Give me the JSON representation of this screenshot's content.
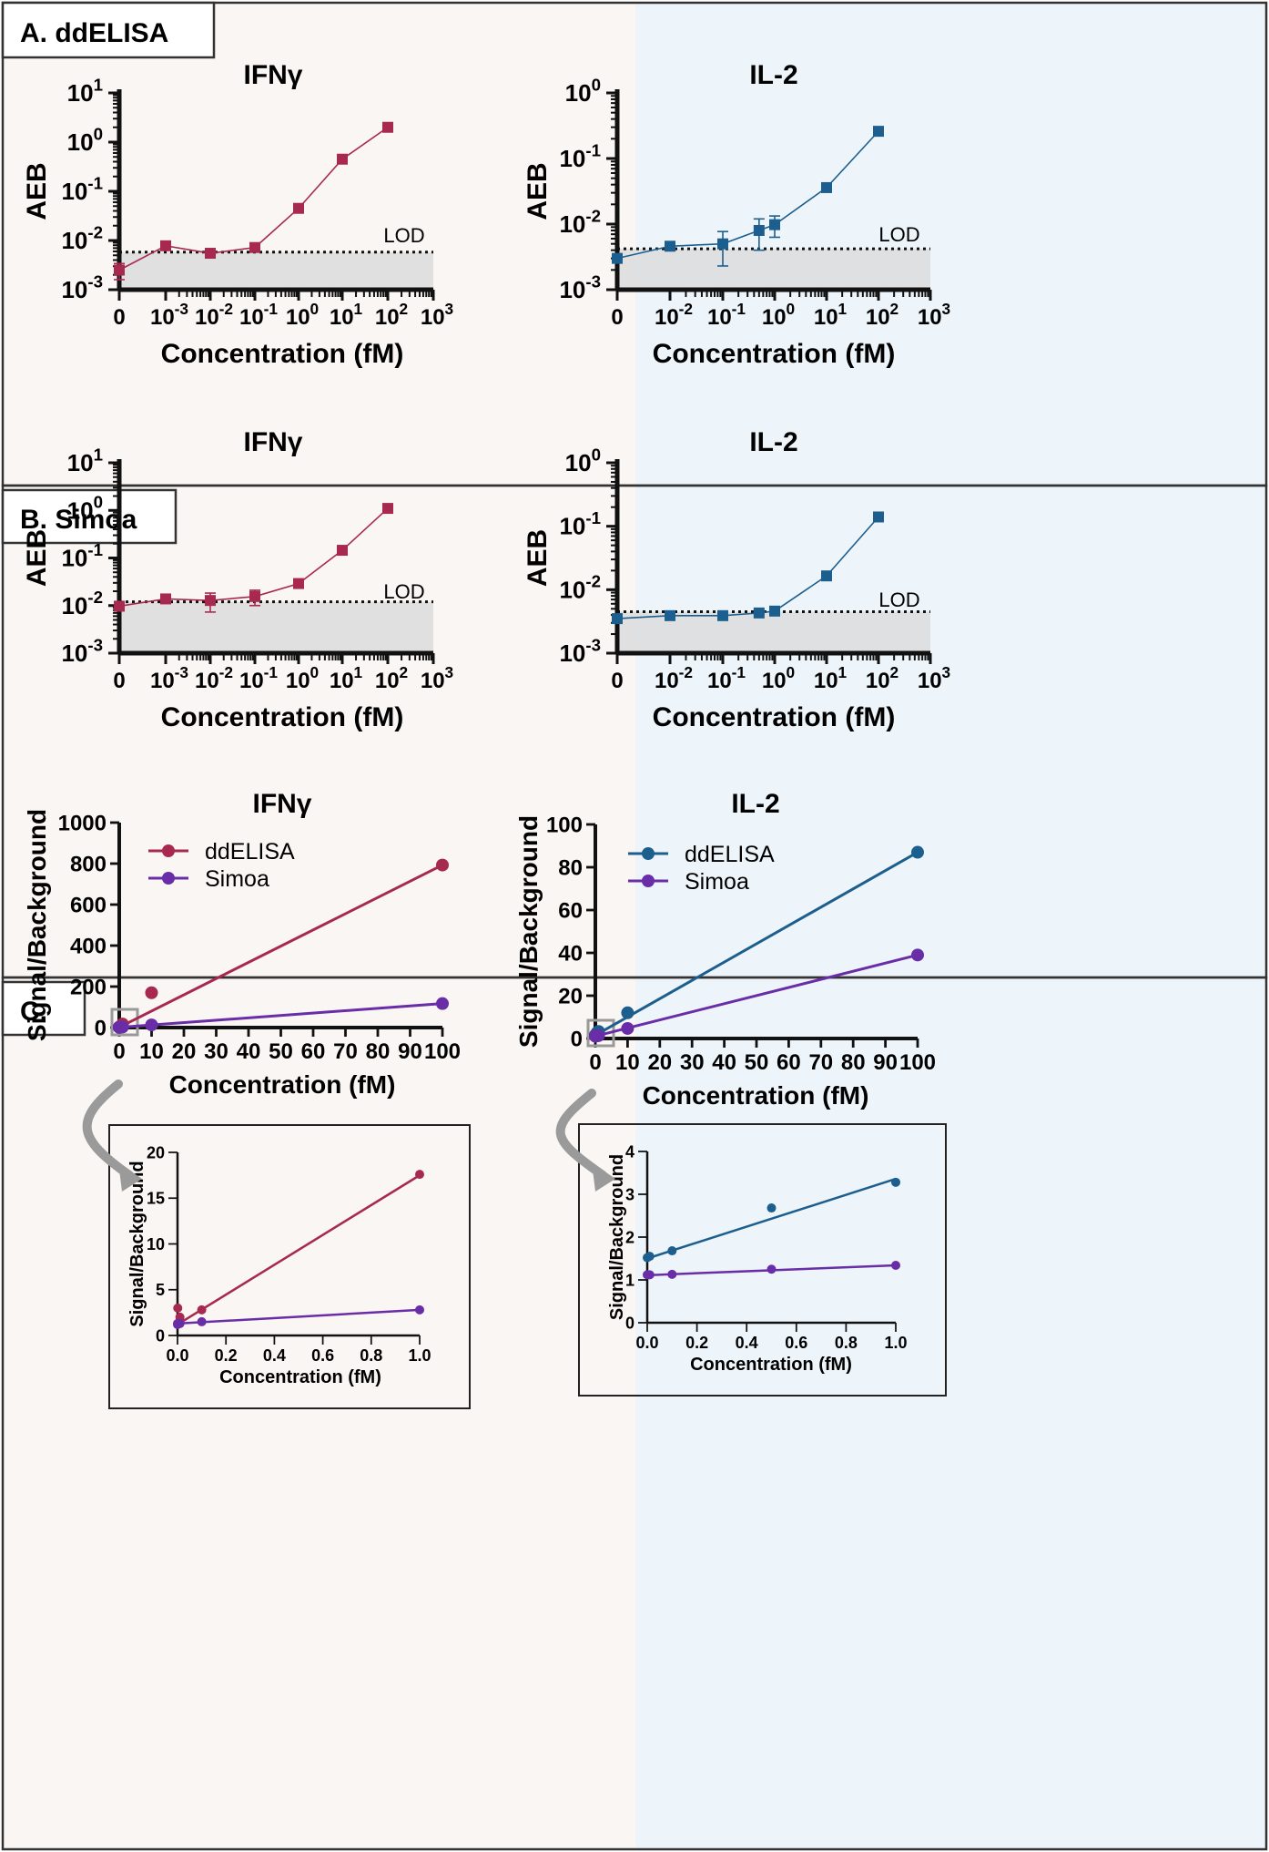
{
  "panels": [
    {
      "id": "A",
      "label": "A. ddELISA"
    },
    {
      "id": "B",
      "label": "B. Simoa"
    },
    {
      "id": "C",
      "label": "C."
    }
  ],
  "colors": {
    "ifng": "#A8294F",
    "il2": "#1C5F8E",
    "simoa": "#6A2DA8",
    "bg_left": "#FAF6F3",
    "bg_right": "#EEF5FA",
    "lod_fill": "#DCDCDC",
    "border": "#333333"
  },
  "chart_data": [
    {
      "id": "A-IFNg",
      "type": "line",
      "panel": "A",
      "title": "IFNγ",
      "xlabel": "Concentration (fM)",
      "ylabel": "AEB",
      "y_scale": "log",
      "ylim_exp": [
        -3,
        1
      ],
      "x_scale": "log-with-zero",
      "x_ticks": [
        {
          "label": "0",
          "value": 0
        },
        {
          "label": "10-3",
          "value": 0.001
        },
        {
          "label": "10-2",
          "value": 0.01
        },
        {
          "label": "10-1",
          "value": 0.1
        },
        {
          "label": "100",
          "value": 1
        },
        {
          "label": "101",
          "value": 10
        },
        {
          "label": "102",
          "value": 100
        },
        {
          "label": "103",
          "value": 1000
        }
      ],
      "y_ticks": [
        "10-3",
        "10-2",
        "10-1",
        "100",
        "101"
      ],
      "lod": 0.0058,
      "lod_label": "LOD",
      "marker": "square",
      "color": "#A8294F",
      "x": [
        0,
        0.001,
        0.01,
        0.1,
        1,
        10,
        100
      ],
      "y": [
        0.0025,
        0.0078,
        0.0055,
        0.0072,
        0.045,
        0.45,
        2.0
      ],
      "err": [
        0.0009,
        0,
        0,
        0,
        0,
        0,
        0
      ]
    },
    {
      "id": "A-IL2",
      "type": "line",
      "panel": "A",
      "title": "IL-2",
      "xlabel": "Concentration (fM)",
      "ylabel": "AEB",
      "y_scale": "log",
      "ylim_exp": [
        -3,
        0
      ],
      "x_scale": "log-with-zero",
      "x_ticks": [
        {
          "label": "0",
          "value": 0
        },
        {
          "label": "10-2",
          "value": 0.01
        },
        {
          "label": "10-1",
          "value": 0.1
        },
        {
          "label": "100",
          "value": 1
        },
        {
          "label": "101",
          "value": 10
        },
        {
          "label": "102",
          "value": 100
        },
        {
          "label": "103",
          "value": 1000
        }
      ],
      "y_ticks": [
        "10-3",
        "10-2",
        "10-1",
        "100"
      ],
      "lod": 0.0042,
      "lod_label": "LOD",
      "marker": "square",
      "color": "#1C5F8E",
      "x": [
        0,
        0.01,
        0.1,
        0.5,
        1,
        10,
        100
      ],
      "y": [
        0.003,
        0.0046,
        0.005,
        0.008,
        0.0098,
        0.036,
        0.26
      ],
      "err": [
        0.0003,
        0.0002,
        0.0027,
        0.004,
        0.0035,
        0.004,
        0
      ]
    },
    {
      "id": "B-IFNg",
      "type": "line",
      "panel": "B",
      "title": "IFNγ",
      "xlabel": "Concentration (fM)",
      "ylabel": "AEB",
      "y_scale": "log",
      "ylim_exp": [
        -3,
        1
      ],
      "x_scale": "log-with-zero",
      "x_ticks": [
        {
          "label": "0",
          "value": 0
        },
        {
          "label": "10-3",
          "value": 0.001
        },
        {
          "label": "10-2",
          "value": 0.01
        },
        {
          "label": "10-1",
          "value": 0.1
        },
        {
          "label": "100",
          "value": 1
        },
        {
          "label": "101",
          "value": 10
        },
        {
          "label": "102",
          "value": 100
        },
        {
          "label": "103",
          "value": 1000
        }
      ],
      "y_ticks": [
        "10-3",
        "10-2",
        "10-1",
        "100",
        "101"
      ],
      "lod": 0.012,
      "lod_label": "LOD",
      "marker": "square",
      "color": "#A8294F",
      "x": [
        0,
        0.001,
        0.01,
        0.1,
        1,
        10,
        100
      ],
      "y": [
        0.0097,
        0.0138,
        0.0128,
        0.0155,
        0.029,
        0.145,
        1.1
      ],
      "err": [
        0.0008,
        0.0018,
        0.0055,
        0.0055,
        0.0025,
        0,
        0
      ]
    },
    {
      "id": "B-IL2",
      "type": "line",
      "panel": "B",
      "title": "IL-2",
      "xlabel": "Concentration (fM)",
      "ylabel": "AEB",
      "y_scale": "log",
      "ylim_exp": [
        -3,
        0
      ],
      "x_scale": "log-with-zero",
      "x_ticks": [
        {
          "label": "0",
          "value": 0
        },
        {
          "label": "10-2",
          "value": 0.01
        },
        {
          "label": "10-1",
          "value": 0.1
        },
        {
          "label": "100",
          "value": 1
        },
        {
          "label": "101",
          "value": 10
        },
        {
          "label": "102",
          "value": 100
        },
        {
          "label": "103",
          "value": 1000
        }
      ],
      "y_ticks": [
        "10-3",
        "10-2",
        "10-1",
        "100"
      ],
      "lod": 0.0045,
      "lod_label": "LOD",
      "marker": "square",
      "color": "#1C5F8E",
      "x": [
        0,
        0.01,
        0.1,
        0.5,
        1,
        10,
        100
      ],
      "y": [
        0.0035,
        0.0039,
        0.0039,
        0.0043,
        0.0046,
        0.0165,
        0.14
      ],
      "err": [
        0.0002,
        0.0002,
        0.0002,
        0.0002,
        0.0002,
        0.001,
        0
      ]
    },
    {
      "id": "C-IFNg",
      "type": "scatter",
      "panel": "C",
      "title": "IFNγ",
      "xlabel": "Concentration (fM)",
      "ylabel": "Signal/Background",
      "xlim": [
        0,
        100
      ],
      "ylim": [
        0,
        1000
      ],
      "x_ticks": [
        0,
        10,
        20,
        30,
        40,
        50,
        60,
        70,
        80,
        90,
        100
      ],
      "y_ticks": [
        0,
        200,
        400,
        600,
        800,
        1000
      ],
      "legend": "top-left",
      "series": [
        {
          "name": "ddELISA",
          "color": "#A8294F",
          "x": [
            0,
            0.001,
            0.01,
            0.1,
            1,
            10,
            100
          ],
          "y": [
            1.3,
            2.8,
            2.0,
            2.8,
            17.5,
            170,
            793
          ],
          "fit": [
            [
              0,
              1.5
            ],
            [
              100,
              793
            ]
          ]
        },
        {
          "name": "Simoa",
          "color": "#6A2DA8",
          "x": [
            0,
            0.001,
            0.01,
            0.1,
            1,
            10,
            100
          ],
          "y": [
            1.2,
            1.3,
            1.3,
            1.5,
            2.8,
            13,
            117
          ],
          "fit": [
            [
              0,
              1.2
            ],
            [
              100,
              117
            ]
          ]
        }
      ]
    },
    {
      "id": "C-IFNg-inset",
      "type": "scatter",
      "panel": "C",
      "title": "",
      "xlabel": "Concentration (fM)",
      "ylabel": "Signal/Background",
      "xlim": [
        0,
        1
      ],
      "ylim": [
        0,
        20
      ],
      "x_ticks": [
        "0.0",
        "0.2",
        "0.4",
        "0.6",
        "0.8",
        "1.0"
      ],
      "y_ticks": [
        0,
        5,
        10,
        15,
        20
      ],
      "series": [
        {
          "name": "ddELISA",
          "color": "#A8294F",
          "x": [
            0,
            0.001,
            0.01,
            0.1,
            1
          ],
          "y": [
            1.3,
            3.0,
            2.0,
            2.8,
            17.6
          ],
          "fit": [
            [
              0,
              1.2
            ],
            [
              1,
              17.5
            ]
          ]
        },
        {
          "name": "Simoa",
          "color": "#6A2DA8",
          "x": [
            0,
            0.001,
            0.01,
            0.1,
            1
          ],
          "y": [
            1.2,
            1.3,
            1.3,
            1.5,
            2.8
          ],
          "fit": [
            [
              0,
              1.3
            ],
            [
              1,
              2.8
            ]
          ]
        }
      ]
    },
    {
      "id": "C-IL2",
      "type": "scatter",
      "panel": "C",
      "title": "IL-2",
      "xlabel": "Concentration (fM)",
      "ylabel": "Signal/Background",
      "xlim": [
        0,
        100
      ],
      "ylim": [
        0,
        100
      ],
      "x_ticks": [
        0,
        10,
        20,
        30,
        40,
        50,
        60,
        70,
        80,
        90,
        100
      ],
      "y_ticks": [
        0,
        20,
        40,
        60,
        80,
        100
      ],
      "legend": "top-left",
      "series": [
        {
          "name": "ddELISA",
          "color": "#1C5F8E",
          "x": [
            0,
            0.01,
            0.1,
            0.5,
            1,
            10,
            100
          ],
          "y": [
            1.5,
            1.6,
            1.7,
            2.7,
            3.3,
            12,
            87
          ],
          "fit": [
            [
              0,
              1.5
            ],
            [
              100,
              87
            ]
          ]
        },
        {
          "name": "Simoa",
          "color": "#6A2DA8",
          "x": [
            0,
            0.01,
            0.1,
            0.5,
            1,
            10,
            100
          ],
          "y": [
            1.1,
            1.1,
            1.15,
            1.25,
            1.35,
            4.7,
            39
          ],
          "fit": [
            [
              0,
              1.1
            ],
            [
              100,
              39
            ]
          ]
        }
      ]
    },
    {
      "id": "C-IL2-inset",
      "type": "scatter",
      "panel": "C",
      "title": "",
      "xlabel": "Concentration (fM)",
      "ylabel": "Signal/Background",
      "xlim": [
        0,
        1
      ],
      "ylim": [
        0,
        4
      ],
      "x_ticks": [
        "0.0",
        "0.2",
        "0.4",
        "0.6",
        "0.8",
        "1.0"
      ],
      "y_ticks": [
        0,
        1,
        2,
        3,
        4
      ],
      "series": [
        {
          "name": "ddELISA",
          "color": "#1C5F8E",
          "x": [
            0,
            0.01,
            0.1,
            0.5,
            1
          ],
          "y": [
            1.52,
            1.55,
            1.68,
            2.68,
            3.28
          ],
          "fit": [
            [
              0,
              1.5
            ],
            [
              1,
              3.36
            ]
          ]
        },
        {
          "name": "Simoa",
          "color": "#6A2DA8",
          "x": [
            0,
            0.01,
            0.1,
            0.5,
            1
          ],
          "y": [
            1.12,
            1.12,
            1.13,
            1.25,
            1.34
          ],
          "fit": [
            [
              0,
              1.11
            ],
            [
              1,
              1.34
            ]
          ]
        }
      ]
    }
  ]
}
